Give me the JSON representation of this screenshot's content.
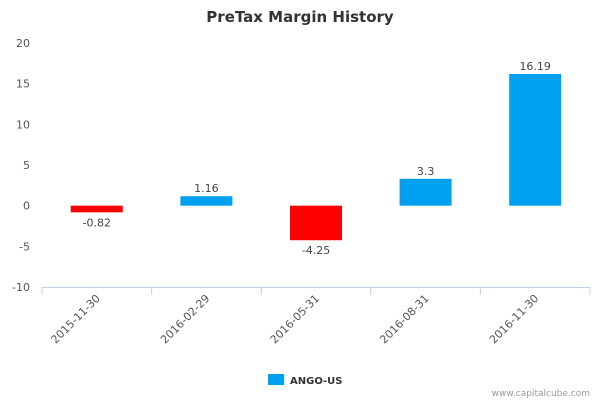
{
  "chart_data": {
    "type": "bar",
    "title": "PreTax Margin History",
    "xlabel": "",
    "ylabel": "",
    "categories": [
      "2015-11-30",
      "2016-02-29",
      "2016-05-31",
      "2016-08-31",
      "2016-11-30"
    ],
    "series": [
      {
        "name": "ANGO-US",
        "values": [
          -0.82,
          1.16,
          -4.25,
          3.3,
          16.19
        ]
      }
    ],
    "data_labels": [
      "-0.82",
      "1.16",
      "-4.25",
      "3.3",
      "16.19"
    ],
    "ylim": [
      -10,
      20
    ],
    "yticks": [
      -10,
      -5,
      0,
      5,
      10,
      15,
      20
    ],
    "grid": false,
    "legend_position": "bottom",
    "colors": {
      "positive": "#00a0f0",
      "negative": "#ff0000"
    }
  },
  "credit": "www.capitalcube.com"
}
